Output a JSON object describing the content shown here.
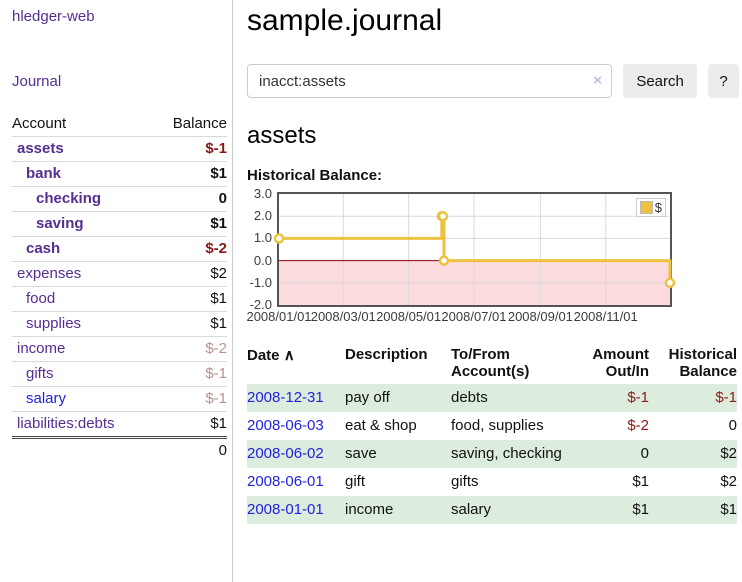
{
  "brand": "hledger-web",
  "nav": {
    "journal_label": "Journal"
  },
  "sidebar": {
    "header": {
      "account": "Account",
      "balance": "Balance"
    },
    "accounts": [
      {
        "name": "assets",
        "balance": "$-1"
      },
      {
        "name": "bank",
        "balance": "$1"
      },
      {
        "name": "checking",
        "balance": "0"
      },
      {
        "name": "saving",
        "balance": "$1"
      },
      {
        "name": "cash",
        "balance": "$-2"
      },
      {
        "name": "expenses",
        "balance": "$2"
      },
      {
        "name": "food",
        "balance": "$1"
      },
      {
        "name": "supplies",
        "balance": "$1"
      },
      {
        "name": "income",
        "balance": "$-2"
      },
      {
        "name": "gifts",
        "balance": "$-1"
      },
      {
        "name": "salary",
        "balance": "$-1"
      },
      {
        "name": "liabilities:debts",
        "balance": "$1"
      }
    ],
    "total": "0"
  },
  "header": {
    "title": "sample.journal"
  },
  "search": {
    "value": "inacct:assets",
    "clear_icon": "×",
    "button_label": "Search",
    "help_label": "?"
  },
  "account_page": {
    "title": "assets",
    "chart_label": "Historical Balance:"
  },
  "chart_data": {
    "type": "line",
    "style": "step",
    "title": "Historical Balance",
    "x_range": [
      "2008/01/01",
      "2008/12/31"
    ],
    "ylim": [
      -2,
      3
    ],
    "y_ticks": [
      "3.0",
      "2.0",
      "1.0",
      "0.0",
      "-1.0",
      "-2.0"
    ],
    "x_ticks": [
      "2008/01/01",
      "2008/03/01",
      "2008/05/01",
      "2008/07/01",
      "2008/09/01",
      "2008/11/01"
    ],
    "grid": true,
    "negative_region_color": "#fbdbdd",
    "zero_line_color": "#8b0000",
    "grid_color": "#d9d9d9",
    "series": [
      {
        "name": "$",
        "color": "#edc240",
        "points": [
          [
            "2008/01/01",
            1.0
          ],
          [
            "2008/06/01",
            2.0
          ],
          [
            "2008/06/02",
            2.0
          ],
          [
            "2008/06/03",
            0.0
          ],
          [
            "2008/12/31",
            -1.0
          ]
        ]
      }
    ],
    "legend": {
      "label": "$",
      "swatch_color": "#edc240",
      "position": "top-right"
    }
  },
  "register": {
    "columns": {
      "date": "Date",
      "sort_icon": "∧",
      "description": "Description",
      "tofrom": "To/From Account(s)",
      "amount": "Amount Out/In",
      "historical": "Historical Balance"
    },
    "rows": [
      {
        "date": "2008-12-31",
        "description": "pay off",
        "accounts": "debts",
        "amount": "$-1",
        "historical": "$-1"
      },
      {
        "date": "2008-06-03",
        "description": "eat & shop",
        "accounts": "food, supplies",
        "amount": "$-2",
        "historical": "0"
      },
      {
        "date": "2008-06-02",
        "description": "save",
        "accounts": "saving, checking",
        "amount": "0",
        "historical": "$2"
      },
      {
        "date": "2008-06-01",
        "description": "gift",
        "accounts": "gifts",
        "amount": "$1",
        "historical": "$2"
      },
      {
        "date": "2008-01-01",
        "description": "income",
        "accounts": "salary",
        "amount": "$1",
        "historical": "$1"
      }
    ]
  },
  "colors": {
    "accent_purple": "#552e91",
    "link_blue": "#2222dd",
    "negative": "#8b1a1a",
    "negative_soft": "#bc8f8f",
    "row_highlight": "#dcecdd",
    "chart_gold": "#edc240"
  }
}
